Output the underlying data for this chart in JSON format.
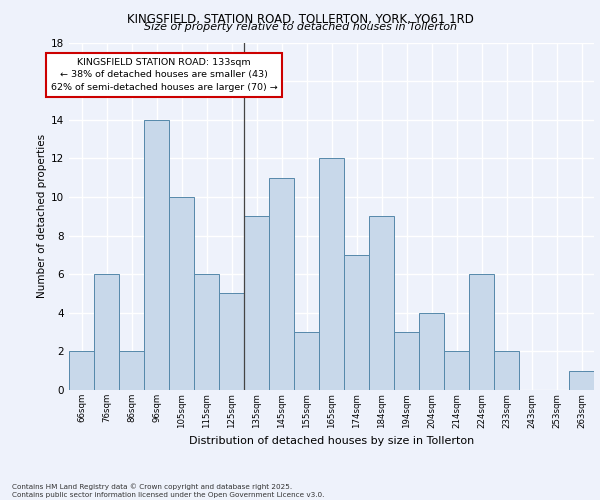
{
  "title1": "KINGSFIELD, STATION ROAD, TOLLERTON, YORK, YO61 1RD",
  "title2": "Size of property relative to detached houses in Tollerton",
  "xlabel": "Distribution of detached houses by size in Tollerton",
  "ylabel": "Number of detached properties",
  "categories": [
    "66sqm",
    "76sqm",
    "86sqm",
    "96sqm",
    "105sqm",
    "115sqm",
    "125sqm",
    "135sqm",
    "145sqm",
    "155sqm",
    "165sqm",
    "174sqm",
    "184sqm",
    "194sqm",
    "204sqm",
    "214sqm",
    "224sqm",
    "233sqm",
    "243sqm",
    "253sqm",
    "263sqm"
  ],
  "values": [
    2,
    6,
    2,
    14,
    10,
    6,
    5,
    9,
    11,
    3,
    12,
    7,
    9,
    3,
    4,
    2,
    6,
    2,
    0,
    0,
    1
  ],
  "bar_color": "#c8d8ea",
  "bar_edge_color": "#5588aa",
  "annotation_text": "KINGSFIELD STATION ROAD: 133sqm\n← 38% of detached houses are smaller (43)\n62% of semi-detached houses are larger (70) →",
  "annotation_box_color": "#ffffff",
  "annotation_box_edge": "#cc0000",
  "vline_x_index": 6.5,
  "ylim": [
    0,
    18
  ],
  "yticks": [
    0,
    2,
    4,
    6,
    8,
    10,
    12,
    14,
    16,
    18
  ],
  "background_color": "#eef2fb",
  "grid_color": "#ffffff",
  "footer": "Contains HM Land Registry data © Crown copyright and database right 2025.\nContains public sector information licensed under the Open Government Licence v3.0."
}
